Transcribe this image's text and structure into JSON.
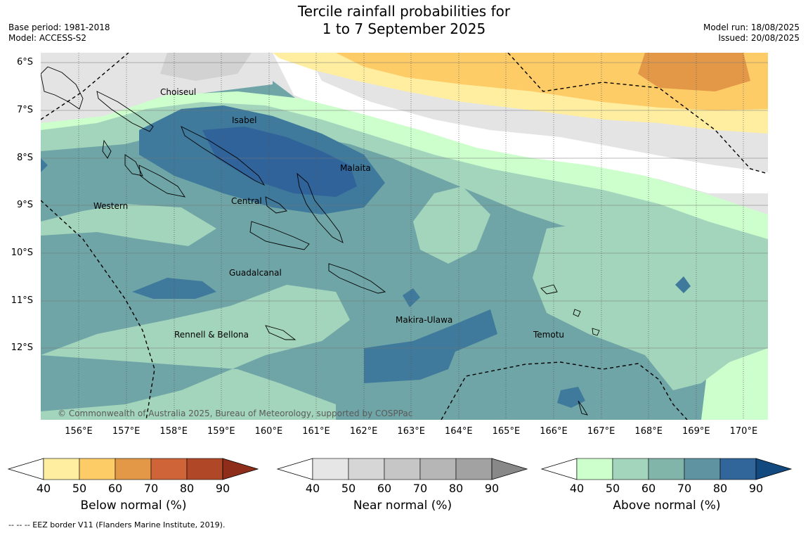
{
  "header": {
    "title_line1": "Tercile rainfall probabilities for",
    "title_line2": "1 to 7 September 2025",
    "base_period": "Base period: 1981-2018",
    "model": "Model: ACCESS-S2",
    "model_run": "Model run: 18/08/2025",
    "issued": "Issued: 20/08/2025"
  },
  "map": {
    "lat_labels": [
      "6°S",
      "7°S",
      "8°S",
      "9°S",
      "10°S",
      "11°S",
      "12°S"
    ],
    "lon_labels": [
      "156°E",
      "157°E",
      "158°E",
      "159°E",
      "160°E",
      "161°E",
      "162°E",
      "163°E",
      "164°E",
      "165°E",
      "166°E",
      "167°E",
      "168°E",
      "169°E",
      "170°E"
    ],
    "regions": {
      "choiseul": "Choiseul",
      "isabel": "Isabel",
      "malaita": "Malaita",
      "western": "Western",
      "central": "Central",
      "guadalcanal": "Guadalcanal",
      "rennell": "Rennell & Bellona",
      "makira": "Makira-Ulawa",
      "temotu": "Temotu"
    },
    "copyright": "© Commonwealth of Australia 2025, Bureau of Meteorology, supported by COSPPac"
  },
  "legends": {
    "below": {
      "caption": "Below normal (%)",
      "ticks": [
        "40",
        "50",
        "60",
        "70",
        "80",
        "90"
      ],
      "colors": [
        "#ffeea0",
        "#fecc66",
        "#e39848",
        "#ce6437",
        "#b04828",
        "#8e2e1a"
      ]
    },
    "near": {
      "caption": "Near normal (%)",
      "ticks": [
        "40",
        "50",
        "60",
        "70",
        "80",
        "90"
      ],
      "colors": [
        "#e6e6e6",
        "#d6d6d6",
        "#c6c6c6",
        "#b6b6b6",
        "#a2a2a2",
        "#888888"
      ]
    },
    "above": {
      "caption": "Above normal (%)",
      "ticks": [
        "40",
        "50",
        "60",
        "70",
        "80",
        "90"
      ],
      "colors": [
        "#ccffcc",
        "#a3d5bc",
        "#82b5aa",
        "#5f93a2",
        "#30669a",
        "#124a80"
      ]
    }
  },
  "footnote": "--  --  -- EEZ border V11 (Flanders Marine Institute, 2019)."
}
